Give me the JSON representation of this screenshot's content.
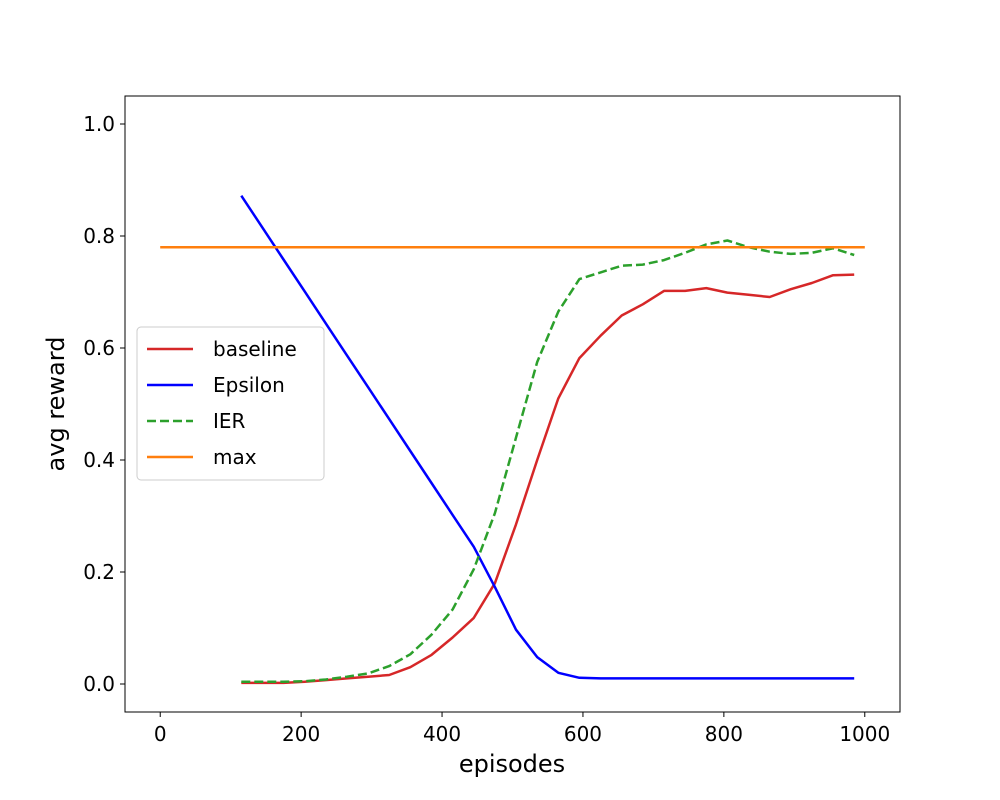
{
  "chart_data": {
    "type": "line",
    "title": "",
    "xlabel": "episodes",
    "ylabel": "avg reward",
    "xlim": [
      -50,
      1050
    ],
    "ylim": [
      -0.05,
      1.05
    ],
    "xticks": [
      0,
      200,
      400,
      600,
      800,
      1000
    ],
    "xtick_labels": [
      "0",
      "200",
      "400",
      "600",
      "800",
      "1000"
    ],
    "yticks": [
      0.0,
      0.2,
      0.4,
      0.6,
      0.8,
      1.0
    ],
    "ytick_labels": [
      "0.0",
      "0.2",
      "0.4",
      "0.6",
      "0.8",
      "1.0"
    ],
    "grid": false,
    "legend_position": "center-left",
    "series": [
      {
        "name": "baseline",
        "color": "#d62728",
        "dash": "solid",
        "x": [
          115,
          145,
          175,
          205,
          235,
          265,
          295,
          325,
          355,
          385,
          415,
          445,
          475,
          505,
          535,
          565,
          595,
          625,
          655,
          685,
          715,
          745,
          775,
          805,
          835,
          865,
          895,
          925,
          955,
          985
        ],
        "y": [
          0.002,
          0.002,
          0.002,
          0.004,
          0.007,
          0.01,
          0.013,
          0.016,
          0.03,
          0.052,
          0.083,
          0.118,
          0.18,
          0.285,
          0.4,
          0.51,
          0.582,
          0.622,
          0.658,
          0.678,
          0.702,
          0.702,
          0.707,
          0.699,
          0.695,
          0.691,
          0.705,
          0.716,
          0.73,
          0.731
        ]
      },
      {
        "name": "Epsilon",
        "color": "#0000ff",
        "dash": "solid",
        "x": [
          115,
          145,
          175,
          205,
          235,
          265,
          295,
          325,
          355,
          385,
          415,
          445,
          475,
          505,
          535,
          565,
          595,
          625,
          655,
          685,
          715,
          745,
          775,
          805,
          835,
          865,
          895,
          925,
          955,
          985
        ],
        "y": [
          0.872,
          0.815,
          0.758,
          0.701,
          0.644,
          0.587,
          0.53,
          0.473,
          0.416,
          0.359,
          0.302,
          0.245,
          0.173,
          0.097,
          0.048,
          0.02,
          0.011,
          0.01,
          0.01,
          0.01,
          0.01,
          0.01,
          0.01,
          0.01,
          0.01,
          0.01,
          0.01,
          0.01,
          0.01,
          0.01
        ]
      },
      {
        "name": "IER",
        "color": "#2ca02c",
        "dash": "dashed",
        "x": [
          115,
          145,
          175,
          205,
          235,
          265,
          295,
          325,
          355,
          385,
          415,
          445,
          475,
          505,
          535,
          565,
          595,
          625,
          655,
          685,
          715,
          745,
          775,
          805,
          835,
          865,
          895,
          925,
          955,
          985
        ],
        "y": [
          0.004,
          0.004,
          0.004,
          0.005,
          0.008,
          0.013,
          0.019,
          0.032,
          0.053,
          0.088,
          0.133,
          0.205,
          0.305,
          0.44,
          0.575,
          0.665,
          0.723,
          0.735,
          0.747,
          0.749,
          0.757,
          0.77,
          0.785,
          0.792,
          0.78,
          0.772,
          0.768,
          0.77,
          0.778,
          0.766
        ]
      },
      {
        "name": "max",
        "color": "#ff7f0e",
        "dash": "solid",
        "x": [
          0,
          1000
        ],
        "y": [
          0.78,
          0.78
        ]
      }
    ]
  }
}
